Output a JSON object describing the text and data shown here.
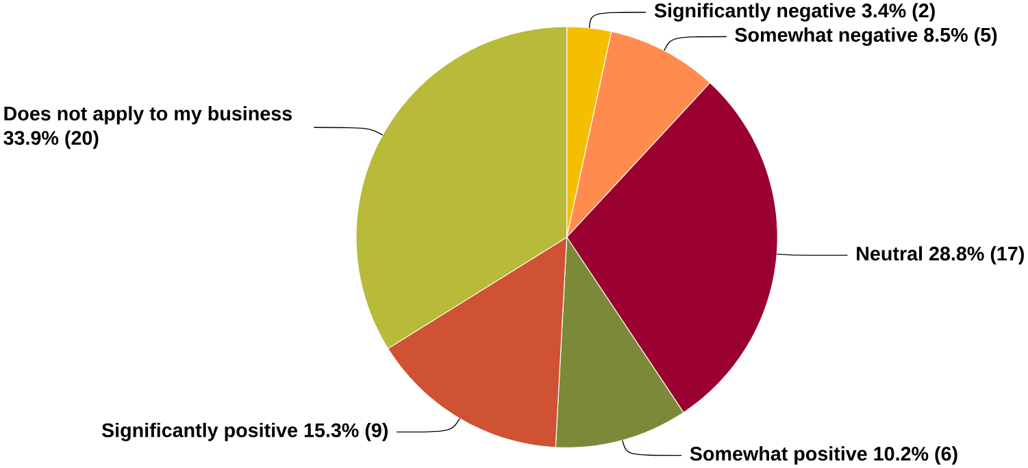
{
  "chart_data": {
    "type": "pie",
    "categories": [
      "Significantly negative",
      "Somewhat negative",
      "Neutral",
      "Somewhat positive",
      "Significantly positive",
      "Does not apply to my business"
    ],
    "values": [
      3.4,
      8.5,
      28.8,
      10.2,
      15.3,
      33.9
    ],
    "value_labels": [
      "3.4% (2)",
      "8.5% (5)",
      "28.8% (17)",
      "10.2% (6)",
      "15.3% (9)",
      "33.9% (20)"
    ],
    "colors": [
      "#f6be00",
      "#ff8b4f",
      "#9a0030",
      "#7a8a38",
      "#d05234",
      "#b8ba3a"
    ]
  }
}
